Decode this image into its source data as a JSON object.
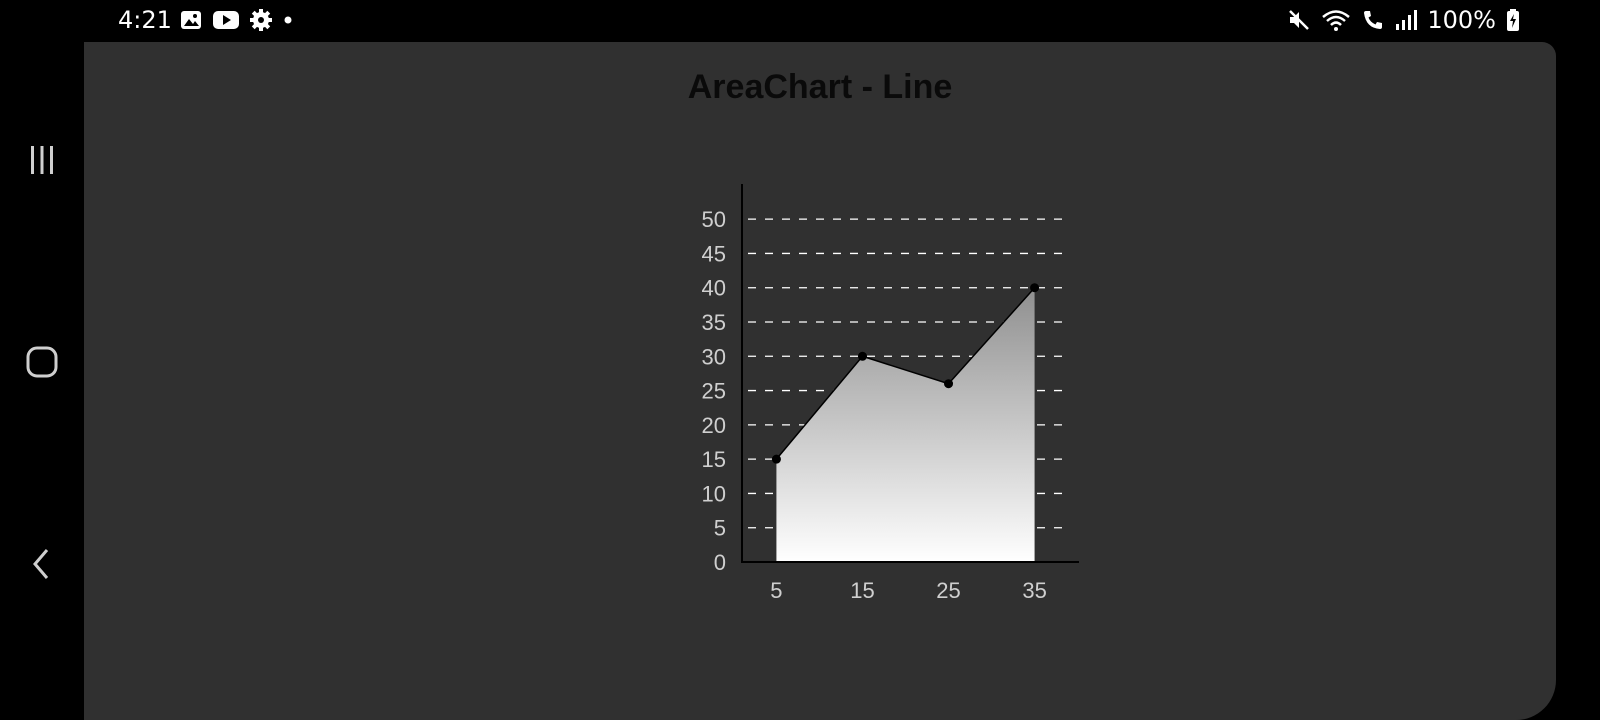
{
  "status_bar": {
    "time": "4:21",
    "battery": "100%",
    "left_icons": [
      "image-icon",
      "youtube-icon",
      "settings-icon",
      "dot-icon"
    ],
    "right_icons": [
      "mute-icon",
      "wifi-icon",
      "wifi-calling-icon",
      "signal-icon",
      "battery-charging-icon"
    ]
  },
  "nav_bar": {
    "items": [
      "recent-apps-icon",
      "home-icon",
      "back-icon"
    ]
  },
  "app": {
    "title": "AreaChart - Line"
  },
  "colors": {
    "background": "#303030",
    "axis": "#000000",
    "grid": "#ffffff",
    "tick_label": "#cfcfcf",
    "area_top": "#8f8f8f",
    "area_bottom": "#ffffff",
    "line": "#000000"
  },
  "chart_data": {
    "type": "area",
    "x": [
      5,
      15,
      25,
      35
    ],
    "y": [
      15,
      30,
      26,
      40
    ],
    "xticks": [
      "5",
      "15",
      "25",
      "35"
    ],
    "yticks": [
      "0",
      "5",
      "10",
      "15",
      "20",
      "25",
      "30",
      "35",
      "40",
      "45",
      "50"
    ],
    "xlim": [
      1,
      39
    ],
    "ylim": [
      0,
      52.5
    ],
    "grid": "horizontal-dashed",
    "title": "AreaChart - Line",
    "xlabel": "",
    "ylabel": ""
  }
}
